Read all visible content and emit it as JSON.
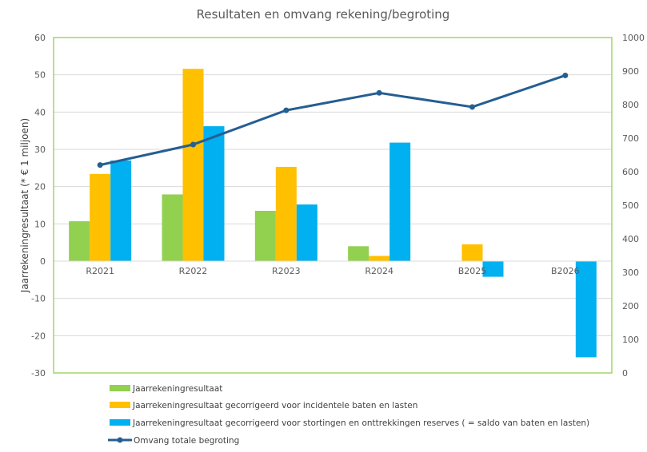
{
  "chart_data": {
    "type": "bar",
    "title": "Resultaten en omvang rekening/begroting",
    "xlabel": "",
    "ylabel": "Jaarrekeningresultaat (* € 1 miljoen)",
    "ylabel_right": "",
    "categories": [
      "R2021",
      "R2022",
      "R2023",
      "R2024",
      "B2025",
      "B2026"
    ],
    "ylim": [
      -30,
      60
    ],
    "yticks": [
      60,
      50,
      40,
      30,
      20,
      10,
      0,
      -10,
      -20,
      -30
    ],
    "ylim_right": [
      0,
      1000
    ],
    "yticks_right": [
      1000,
      900,
      800,
      700,
      600,
      500,
      400,
      300,
      200,
      100,
      0
    ],
    "grid": true,
    "legend_position": "bottom",
    "series": [
      {
        "name": "Jaarrekeningresultaat",
        "type": "bar",
        "axis": "left",
        "color": "#92D050",
        "values": [
          10.7,
          17.9,
          13.5,
          4.0,
          null,
          null
        ]
      },
      {
        "name": "Jaarrekeningresultaat gecorrigeerd voor incidentele baten en lasten",
        "type": "bar",
        "axis": "left",
        "color": "#FFC000",
        "values": [
          23.4,
          51.6,
          25.3,
          1.4,
          4.5,
          null
        ]
      },
      {
        "name": "Jaarrekeningresultaat gecorrigeerd voor stortingen en onttrekkingen reserves ( = saldo van baten en lasten)",
        "type": "bar",
        "axis": "left",
        "color": "#00B0F0",
        "values": [
          27.0,
          36.2,
          15.2,
          31.8,
          -4.2,
          -25.8
        ]
      },
      {
        "name": "Omvang totale begroting",
        "type": "line",
        "axis": "right",
        "color": "#255E91",
        "values": [
          620,
          681,
          783,
          835,
          793,
          887
        ]
      }
    ]
  }
}
